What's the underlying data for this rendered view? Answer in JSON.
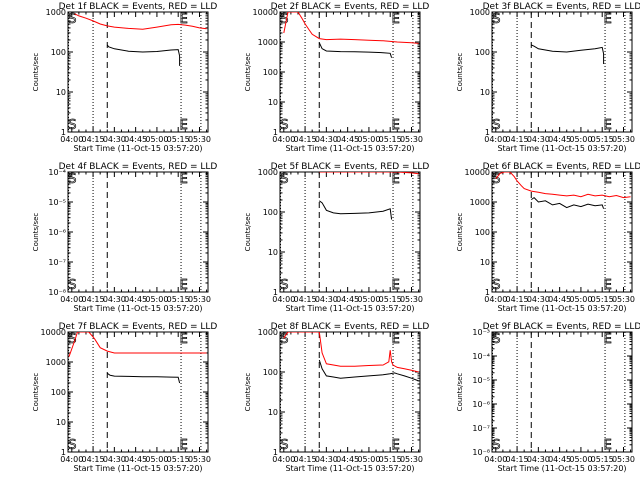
{
  "chart_data": [
    {
      "type": "line",
      "title": "Det 1f BLACK = Events, RED = LLD",
      "xlabel": "Start Time (11-Oct-15 03:57:20)",
      "ylabel": "Counts/sec",
      "yscale": "log",
      "ylim": [
        1,
        1000
      ],
      "y_ticks": [
        "1",
        "10",
        "100",
        "1000"
      ],
      "x_ticks": [
        "04:00",
        "04:15",
        "04:30",
        "04:45",
        "05:00",
        "05:15",
        "05:30"
      ],
      "x_tick_minutes": [
        0,
        15,
        30,
        45,
        60,
        75,
        90
      ],
      "xlim_minutes": [
        -2.67,
        96
      ],
      "markers": [
        "S",
        "E"
      ],
      "marker_minutes": [
        -2.5,
        76
      ],
      "dotted_lines_minutes": [
        -2.3,
        15,
        77,
        91
      ],
      "dashed_line_minutes": [
        25
      ],
      "series": [
        {
          "color": "#000000",
          "x": [
            25,
            26,
            30,
            40,
            50,
            60,
            70,
            75,
            76,
            76
          ],
          "y": [
            150,
            135,
            120,
            105,
            100,
            103,
            112,
            115,
            80,
            45
          ]
        },
        {
          "color": "#ff0000",
          "x": [
            2,
            5,
            10,
            15,
            20,
            25,
            30,
            40,
            50,
            60,
            70,
            75,
            80,
            85,
            90,
            95
          ],
          "y": [
            900,
            800,
            700,
            600,
            500,
            450,
            420,
            390,
            370,
            420,
            480,
            490,
            470,
            440,
            400,
            380
          ]
        }
      ]
    },
    {
      "type": "line",
      "title": "Det 2f BLACK = Events, RED = LLD",
      "xlabel": "Start Time (11-Oct-15 03:57:20)",
      "ylabel": "Counts/sec",
      "yscale": "log",
      "ylim": [
        1,
        10000
      ],
      "y_ticks": [
        "1",
        "10",
        "100",
        "1000",
        "10000"
      ],
      "x_ticks": [
        "04:00",
        "04:15",
        "04:30",
        "04:45",
        "05:00",
        "05:15",
        "05:30"
      ],
      "x_tick_minutes": [
        0,
        15,
        30,
        45,
        60,
        75,
        90
      ],
      "xlim_minutes": [
        -2.67,
        96
      ],
      "markers": [
        "S",
        "E"
      ],
      "marker_minutes": [
        -2.5,
        76
      ],
      "dotted_lines_minutes": [
        -2.3,
        15,
        77,
        91
      ],
      "dashed_line_minutes": [
        25
      ],
      "series": [
        {
          "color": "#000000",
          "x": [
            25,
            27,
            30,
            40,
            50,
            60,
            70,
            75,
            76
          ],
          "y": [
            950,
            600,
            500,
            480,
            470,
            460,
            440,
            420,
            300
          ]
        },
        {
          "color": "#ff0000",
          "x": [
            0,
            3,
            6,
            10,
            13,
            15,
            18,
            20,
            25,
            30,
            40,
            50,
            60,
            70,
            80,
            90,
            95
          ],
          "y": [
            2000,
            10000,
            10000,
            10000,
            6000,
            4000,
            2500,
            1800,
            1300,
            1200,
            1250,
            1200,
            1150,
            1100,
            1000,
            950,
            900
          ]
        }
      ]
    },
    {
      "type": "line",
      "title": "Det 3f BLACK = Events, RED = LLD",
      "xlabel": "Start Time (11-Oct-15 03:57:20)",
      "ylabel": "Counts/sec",
      "yscale": "log",
      "ylim": [
        1,
        1000
      ],
      "y_ticks": [
        "1",
        "10",
        "100",
        "1000"
      ],
      "x_ticks": [
        "04:00",
        "04:15",
        "04:30",
        "04:45",
        "05:00",
        "05:15",
        "05:30"
      ],
      "x_tick_minutes": [
        0,
        15,
        30,
        45,
        60,
        75,
        90
      ],
      "xlim_minutes": [
        -2.67,
        96
      ],
      "markers": [
        "S",
        "E"
      ],
      "marker_minutes": [
        -2.5,
        76
      ],
      "dotted_lines_minutes": [
        -2.3,
        15,
        77,
        91
      ],
      "dashed_line_minutes": [
        25
      ],
      "series": [
        {
          "color": "#000000",
          "x": [
            25,
            27,
            30,
            40,
            50,
            60,
            70,
            75,
            76,
            76
          ],
          "y": [
            150,
            140,
            120,
            105,
            100,
            110,
            120,
            130,
            90,
            50
          ]
        }
      ]
    },
    {
      "type": "line",
      "title": "Det 4f BLACK = Events, RED = LLD",
      "xlabel": "Start Time (11-Oct-15 03:57:20)",
      "ylabel": "Counts/sec",
      "yscale": "log",
      "ylim": [
        1e-08,
        0.0001
      ],
      "y_ticks": [
        "10⁻⁸",
        "10⁻⁷",
        "10⁻⁶",
        "10⁻⁵",
        "10⁻⁴"
      ],
      "x_ticks": [
        "04:00",
        "04:15",
        "04:30",
        "04:45",
        "05:00",
        "05:15",
        "05:30"
      ],
      "x_tick_minutes": [
        0,
        15,
        30,
        45,
        60,
        75,
        90
      ],
      "xlim_minutes": [
        -2.67,
        96
      ],
      "markers": [
        "S",
        "E"
      ],
      "marker_minutes": [
        -2.5,
        76
      ],
      "dotted_lines_minutes": [
        -2.3,
        15,
        77,
        91
      ],
      "dashed_line_minutes": [
        25
      ],
      "series": []
    },
    {
      "type": "line",
      "title": "Det 5f BLACK = Events, RED = LLD",
      "xlabel": "Start Time (11-Oct-15 03:57:20)",
      "ylabel": "Counts/sec",
      "yscale": "log",
      "ylim": [
        1,
        1000
      ],
      "y_ticks": [
        "1",
        "10",
        "100",
        "1000"
      ],
      "x_ticks": [
        "04:00",
        "04:15",
        "04:30",
        "04:45",
        "05:00",
        "05:15",
        "05:30"
      ],
      "x_tick_minutes": [
        0,
        15,
        30,
        45,
        60,
        75,
        90
      ],
      "xlim_minutes": [
        -2.67,
        96
      ],
      "markers": [
        "S",
        "E"
      ],
      "marker_minutes": [
        -2.5,
        76
      ],
      "dotted_lines_minutes": [
        -2.3,
        15,
        77,
        91
      ],
      "dashed_line_minutes": [
        25
      ],
      "series": [
        {
          "color": "#000000",
          "x": [
            25,
            27,
            30,
            35,
            40,
            50,
            60,
            70,
            75,
            76
          ],
          "y": [
            190,
            170,
            110,
            95,
            90,
            92,
            95,
            105,
            120,
            65
          ]
        },
        {
          "color": "#ff0000",
          "x": [
            25,
            30,
            40,
            50,
            60,
            70,
            80,
            90,
            95
          ],
          "y": [
            1000,
            1000,
            1000,
            1000,
            1000,
            1000,
            1000,
            950,
            900
          ]
        }
      ]
    },
    {
      "type": "line",
      "title": "Det 6f BLACK = Events, RED = LLD",
      "xlabel": "Start Time (11-Oct-15 03:57:20)",
      "ylabel": "Counts/sec",
      "yscale": "log",
      "ylim": [
        1,
        10000
      ],
      "y_ticks": [
        "1",
        "10",
        "100",
        "1000",
        "10000"
      ],
      "x_ticks": [
        "04:00",
        "04:15",
        "04:30",
        "04:45",
        "05:00",
        "05:15",
        "05:30"
      ],
      "x_tick_minutes": [
        0,
        15,
        30,
        45,
        60,
        75,
        90
      ],
      "xlim_minutes": [
        -2.67,
        96
      ],
      "markers": [
        "S",
        "E"
      ],
      "marker_minutes": [
        -2.5,
        76
      ],
      "dotted_lines_minutes": [
        -2.3,
        15,
        77,
        91
      ],
      "dashed_line_minutes": [
        25
      ],
      "series": [
        {
          "color": "#000000",
          "x": [
            25,
            27,
            30,
            35,
            40,
            45,
            50,
            55,
            60,
            65,
            70,
            75,
            76
          ],
          "y": [
            1200,
            1400,
            1000,
            1100,
            800,
            900,
            650,
            800,
            700,
            850,
            750,
            800,
            600
          ]
        },
        {
          "color": "#ff0000",
          "x": [
            0,
            3,
            6,
            10,
            13,
            15,
            18,
            20,
            25,
            30,
            35,
            40,
            45,
            50,
            55,
            60,
            65,
            70,
            75,
            80,
            85,
            90,
            95
          ],
          "y": [
            6000,
            9000,
            10000,
            10000,
            7000,
            5000,
            3500,
            2800,
            2300,
            2100,
            1900,
            1800,
            1700,
            1600,
            1700,
            1500,
            1800,
            1600,
            1700,
            1500,
            1650,
            1400,
            1500
          ]
        }
      ]
    },
    {
      "type": "line",
      "title": "Det 7f BLACK = Events, RED = LLD",
      "xlabel": "Start Time (11-Oct-15 03:57:20)",
      "ylabel": "Counts/sec",
      "yscale": "log",
      "ylim": [
        1,
        10000
      ],
      "y_ticks": [
        "1",
        "10",
        "100",
        "1000",
        "10000"
      ],
      "x_ticks": [
        "04:00",
        "04:15",
        "04:30",
        "04:45",
        "05:00",
        "05:15",
        "05:30"
      ],
      "x_tick_minutes": [
        0,
        15,
        30,
        45,
        60,
        75,
        90
      ],
      "xlim_minutes": [
        -2.67,
        96
      ],
      "markers": [
        "S",
        "E"
      ],
      "marker_minutes": [
        -2.5,
        76
      ],
      "dotted_lines_minutes": [
        -2.3,
        15,
        77,
        91
      ],
      "dashed_line_minutes": [
        25
      ],
      "series": [
        {
          "color": "#000000",
          "x": [
            25,
            27,
            30,
            40,
            50,
            60,
            70,
            75,
            76
          ],
          "y": [
            420,
            360,
            340,
            330,
            320,
            320,
            315,
            310,
            200
          ]
        },
        {
          "color": "#ff0000",
          "x": [
            -2,
            2,
            4,
            8,
            12,
            16,
            20,
            25,
            30,
            40,
            50,
            60,
            70,
            80,
            90,
            95
          ],
          "y": [
            1500,
            5000,
            10000,
            10000,
            10000,
            6000,
            3000,
            2300,
            2000,
            2000,
            2000,
            2000,
            2000,
            2000,
            2000,
            2000
          ]
        }
      ]
    },
    {
      "type": "line",
      "title": "Det 8f BLACK = Events, RED = LLD",
      "xlabel": "Start Time (11-Oct-15 03:57:20)",
      "ylabel": "Counts/sec",
      "yscale": "log",
      "ylim": [
        1,
        1000
      ],
      "y_ticks": [
        "1",
        "10",
        "100",
        "1000"
      ],
      "x_ticks": [
        "04:00",
        "04:15",
        "04:30",
        "04:45",
        "05:00",
        "05:15",
        "05:30"
      ],
      "x_tick_minutes": [
        0,
        15,
        30,
        45,
        60,
        75,
        90
      ],
      "xlim_minutes": [
        -2.67,
        96
      ],
      "markers": [
        "S",
        "E"
      ],
      "marker_minutes": [
        -2.5,
        76
      ],
      "dotted_lines_minutes": [
        -2.3,
        15,
        77,
        91
      ],
      "dashed_line_minutes": [
        25
      ],
      "series": [
        {
          "color": "#000000",
          "x": [
            25,
            27,
            30,
            35,
            40,
            50,
            60,
            70,
            75,
            78,
            80,
            85,
            90,
            95
          ],
          "y": [
            200,
            120,
            80,
            75,
            70,
            75,
            80,
            85,
            90,
            95,
            90,
            80,
            70,
            60
          ]
        },
        {
          "color": "#ff0000",
          "x": [
            0,
            3,
            6,
            10,
            13,
            15,
            18,
            20,
            25,
            27,
            30,
            40,
            50,
            60,
            70,
            74,
            75,
            76,
            77,
            80,
            85,
            90,
            95
          ],
          "y": [
            700,
            1000,
            1000,
            1000,
            1000,
            1000,
            1000,
            1000,
            1000,
            300,
            160,
            140,
            140,
            145,
            150,
            180,
            350,
            180,
            150,
            130,
            120,
            110,
            100
          ]
        }
      ]
    },
    {
      "type": "line",
      "title": "Det 9f BLACK = Events, RED = LLD",
      "xlabel": "Start Time (11-Oct-15 03:57:20)",
      "ylabel": "Counts/sec",
      "yscale": "log",
      "ylim": [
        1e-08,
        0.001
      ],
      "y_ticks": [
        "10⁻⁸",
        "10⁻⁷",
        "10⁻⁶",
        "10⁻⁵",
        "10⁻⁴",
        "10⁻³"
      ],
      "x_ticks": [
        "04:00",
        "04:15",
        "04:30",
        "04:45",
        "05:00",
        "05:15",
        "05:30"
      ],
      "x_tick_minutes": [
        0,
        15,
        30,
        45,
        60,
        75,
        90
      ],
      "xlim_minutes": [
        -2.67,
        96
      ],
      "markers": [
        "S",
        "E"
      ],
      "marker_minutes": [
        -2.5,
        76
      ],
      "dotted_lines_minutes": [
        -2.3,
        15,
        77,
        91
      ],
      "dashed_line_minutes": [
        25
      ],
      "series": []
    }
  ]
}
